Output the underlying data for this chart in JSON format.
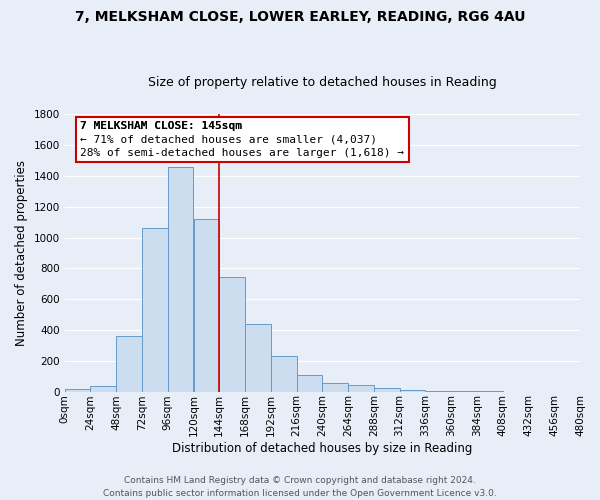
{
  "title": "7, MELKSHAM CLOSE, LOWER EARLEY, READING, RG6 4AU",
  "subtitle": "Size of property relative to detached houses in Reading",
  "xlabel": "Distribution of detached houses by size in Reading",
  "ylabel": "Number of detached properties",
  "bin_edges": [
    0,
    24,
    48,
    72,
    96,
    120,
    144,
    168,
    192,
    216,
    240,
    264,
    288,
    312,
    336,
    360,
    384,
    408,
    432,
    456,
    480
  ],
  "bar_heights": [
    15,
    35,
    360,
    1060,
    1460,
    1120,
    745,
    440,
    230,
    110,
    55,
    45,
    20,
    10,
    5,
    2,
    1,
    0,
    0,
    0
  ],
  "bar_color": "#ccddf0",
  "bar_edge_color": "#6699cc",
  "vline_x": 144,
  "vline_color": "#cc0000",
  "ylim": [
    0,
    1800
  ],
  "yticks": [
    0,
    200,
    400,
    600,
    800,
    1000,
    1200,
    1400,
    1600,
    1800
  ],
  "xtick_labels": [
    "0sqm",
    "24sqm",
    "48sqm",
    "72sqm",
    "96sqm",
    "120sqm",
    "144sqm",
    "168sqm",
    "192sqm",
    "216sqm",
    "240sqm",
    "264sqm",
    "288sqm",
    "312sqm",
    "336sqm",
    "360sqm",
    "384sqm",
    "408sqm",
    "432sqm",
    "456sqm",
    "480sqm"
  ],
  "annotation_title": "7 MELKSHAM CLOSE: 145sqm",
  "annotation_line1": "← 71% of detached houses are smaller (4,037)",
  "annotation_line2": "28% of semi-detached houses are larger (1,618) →",
  "annotation_box_color": "#ffffff",
  "annotation_box_edge_color": "#cc0000",
  "footer_line1": "Contains HM Land Registry data © Crown copyright and database right 2024.",
  "footer_line2": "Contains public sector information licensed under the Open Government Licence v3.0.",
  "background_color": "#e8eef8",
  "plot_bg_color": "#e8eef8",
  "grid_color": "#ffffff",
  "title_fontsize": 10,
  "subtitle_fontsize": 9,
  "xlabel_fontsize": 8.5,
  "ylabel_fontsize": 8.5,
  "footer_fontsize": 6.5,
  "annotation_fontsize": 8,
  "tick_fontsize": 7.5
}
